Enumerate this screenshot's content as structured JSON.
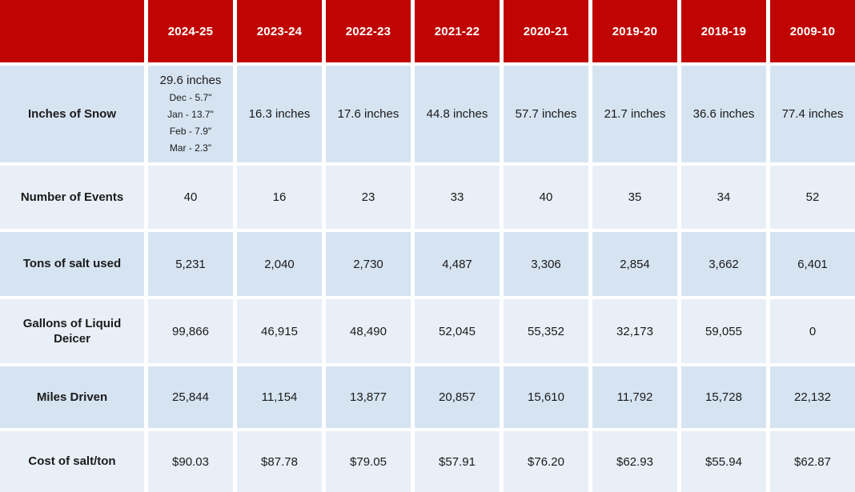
{
  "colors": {
    "header_bg": "#c00404",
    "header_text": "#ffffff",
    "row_shade_dark": "#d6e4f2",
    "row_shade_light": "#e9eff7",
    "body_text": "#1a1a1a",
    "grid_gap": "#ffffff"
  },
  "table": {
    "corner_label": "",
    "columns": [
      "2024-25",
      "2023-24",
      "2022-23",
      "2021-22",
      "2020-21",
      "2019-20",
      "2018-19",
      "2009-10"
    ],
    "rows": [
      {
        "label": "Inches of Snow",
        "values": [
          "29.6 inches",
          "16.3 inches",
          "17.6 inches",
          "44.8 inches",
          "57.7 inches",
          "21.7 inches",
          "36.6 inches",
          "77.4 inches"
        ],
        "monthly_breakdown": [
          "Dec - 5.7\"",
          "Jan - 13.7\"",
          "Feb - 7.9\"",
          "Mar - 2.3\""
        ]
      },
      {
        "label": "Number of Events",
        "values": [
          "40",
          "16",
          "23",
          "33",
          "40",
          "35",
          "34",
          "52"
        ]
      },
      {
        "label": "Tons of salt used",
        "values": [
          "5,231",
          "2,040",
          "2,730",
          "4,487",
          "3,306",
          "2,854",
          "3,662",
          "6,401"
        ]
      },
      {
        "label": "Gallons of Liquid Deicer",
        "values": [
          "99,866",
          "46,915",
          "48,490",
          "52,045",
          "55,352",
          "32,173",
          "59,055",
          "0"
        ]
      },
      {
        "label": "Miles Driven",
        "values": [
          "25,844",
          "11,154",
          "13,877",
          "20,857",
          "15,610",
          "11,792",
          "15,728",
          "22,132"
        ]
      },
      {
        "label": "Cost of salt/ton",
        "values": [
          "$90.03",
          "$87.78",
          "$79.05",
          "$57.91",
          "$76.20",
          "$62.93",
          "$55.94",
          "$62.87"
        ]
      }
    ]
  },
  "chart_data": {
    "type": "table",
    "categories": [
      "2024-25",
      "2023-24",
      "2022-23",
      "2021-22",
      "2020-21",
      "2019-20",
      "2018-19",
      "2009-10"
    ],
    "series": [
      {
        "name": "Inches of Snow",
        "unit": "inches",
        "values": [
          29.6,
          16.3,
          17.6,
          44.8,
          57.7,
          21.7,
          36.6,
          77.4
        ]
      },
      {
        "name": "Number of Events",
        "values": [
          40,
          16,
          23,
          33,
          40,
          35,
          34,
          52
        ]
      },
      {
        "name": "Tons of salt used",
        "values": [
          5231,
          2040,
          2730,
          4487,
          3306,
          2854,
          3662,
          6401
        ]
      },
      {
        "name": "Gallons of Liquid Deicer",
        "values": [
          99866,
          46915,
          48490,
          52045,
          55352,
          32173,
          59055,
          0
        ]
      },
      {
        "name": "Miles Driven",
        "values": [
          25844,
          11154,
          13877,
          20857,
          15610,
          11792,
          15728,
          22132
        ]
      },
      {
        "name": "Cost of salt/ton",
        "unit": "USD",
        "values": [
          90.03,
          87.78,
          79.05,
          57.91,
          76.2,
          62.93,
          55.94,
          62.87
        ]
      }
    ],
    "snow_2024_25_monthly_breakdown": {
      "Dec": 5.7,
      "Jan": 13.7,
      "Feb": 7.9,
      "Mar": 2.3
    }
  }
}
